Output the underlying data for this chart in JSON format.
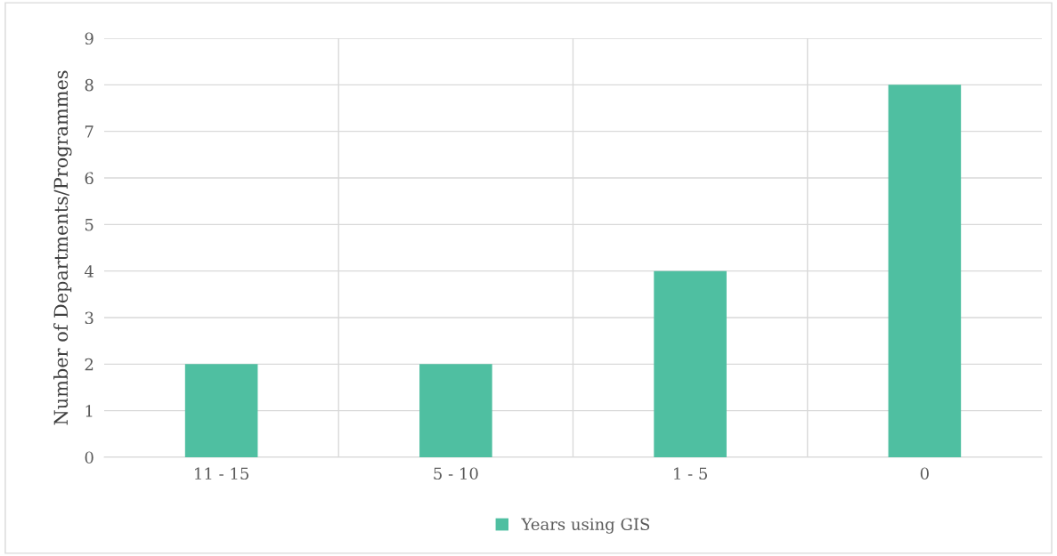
{
  "chart_data": {
    "type": "bar",
    "ylabel": "Number of Departments/Programmes",
    "categories": [
      "11 - 15",
      "5 - 10",
      "1 - 5",
      "0"
    ],
    "series": [
      {
        "name": "Years using GIS",
        "color": "#4fbfa1",
        "values": [
          2,
          2,
          4,
          8
        ]
      }
    ],
    "ylim": [
      0,
      9
    ],
    "yticks": [
      0,
      1,
      2,
      3,
      4,
      5,
      6,
      7,
      8,
      9
    ],
    "grid": true,
    "legend": "bottom"
  }
}
